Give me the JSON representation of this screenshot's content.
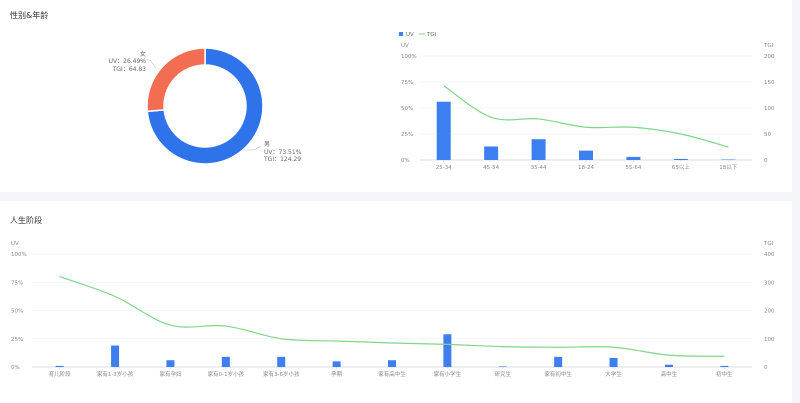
{
  "sections": {
    "gender_age_title": "性别&年龄",
    "life_stage_title": "人生阶段"
  },
  "colors": {
    "bar": "#3d7ff0",
    "line": "#7fd68a",
    "male": "#2f73ea",
    "female": "#f26d52"
  },
  "chart_data": [
    {
      "type": "pie",
      "variant": "donut",
      "slices": [
        {
          "name": "男",
          "uv_label": "UV：73.51%",
          "tgi_label": "TGI：124.29",
          "value": 73.51,
          "tgi": 124.29
        },
        {
          "name": "女",
          "uv_label": "UV：26.49%",
          "tgi_label": "TGI：64.83",
          "value": 26.49,
          "tgi": 64.83
        }
      ]
    },
    {
      "type": "bar",
      "legend": [
        {
          "name": "UV",
          "kind": "bar"
        },
        {
          "name": "TGI",
          "kind": "line"
        }
      ],
      "legend_position": "top-left",
      "left_axis_title": "UV",
      "right_axis_title": "TGI",
      "categories": [
        "25-34",
        "45-54",
        "35-44",
        "18-24",
        "55-64",
        "65以上",
        "18以下"
      ],
      "uv": [
        56,
        13,
        20,
        9,
        3,
        1,
        0.5
      ],
      "tgi": [
        143,
        82,
        79,
        63,
        63,
        50,
        25
      ],
      "left_ticks": [
        "100%",
        "75%",
        "50%",
        "25%",
        "0%"
      ],
      "right_ticks": [
        "200",
        "150",
        "100",
        "50",
        "0"
      ],
      "ylim_uv": [
        0,
        100
      ],
      "ylim_tgi": [
        0,
        200
      ]
    },
    {
      "type": "bar",
      "left_axis_title": "UV",
      "right_axis_title": "TGI",
      "categories": [
        "育儿阶段",
        "家有1-3岁小孩",
        "家有孕妇",
        "家有0-1岁小孩",
        "家有3-6岁小孩",
        "孕期",
        "家有高中生",
        "家有小学生",
        "研究生",
        "家有初中生",
        "大学生",
        "高中生",
        "初中生"
      ],
      "uv": [
        1,
        19,
        6,
        9,
        9,
        5,
        6,
        29,
        0.5,
        9,
        8,
        2,
        1
      ],
      "tgi": [
        320,
        250,
        148,
        145,
        100,
        92,
        85,
        80,
        72,
        70,
        70,
        42,
        38
      ],
      "left_ticks": [
        "100%",
        "75%",
        "50%",
        "25%",
        "0%"
      ],
      "right_ticks": [
        "400",
        "300",
        "200",
        "100",
        "0"
      ],
      "ylim_uv": [
        0,
        100
      ],
      "ylim_tgi": [
        0,
        400
      ]
    }
  ]
}
